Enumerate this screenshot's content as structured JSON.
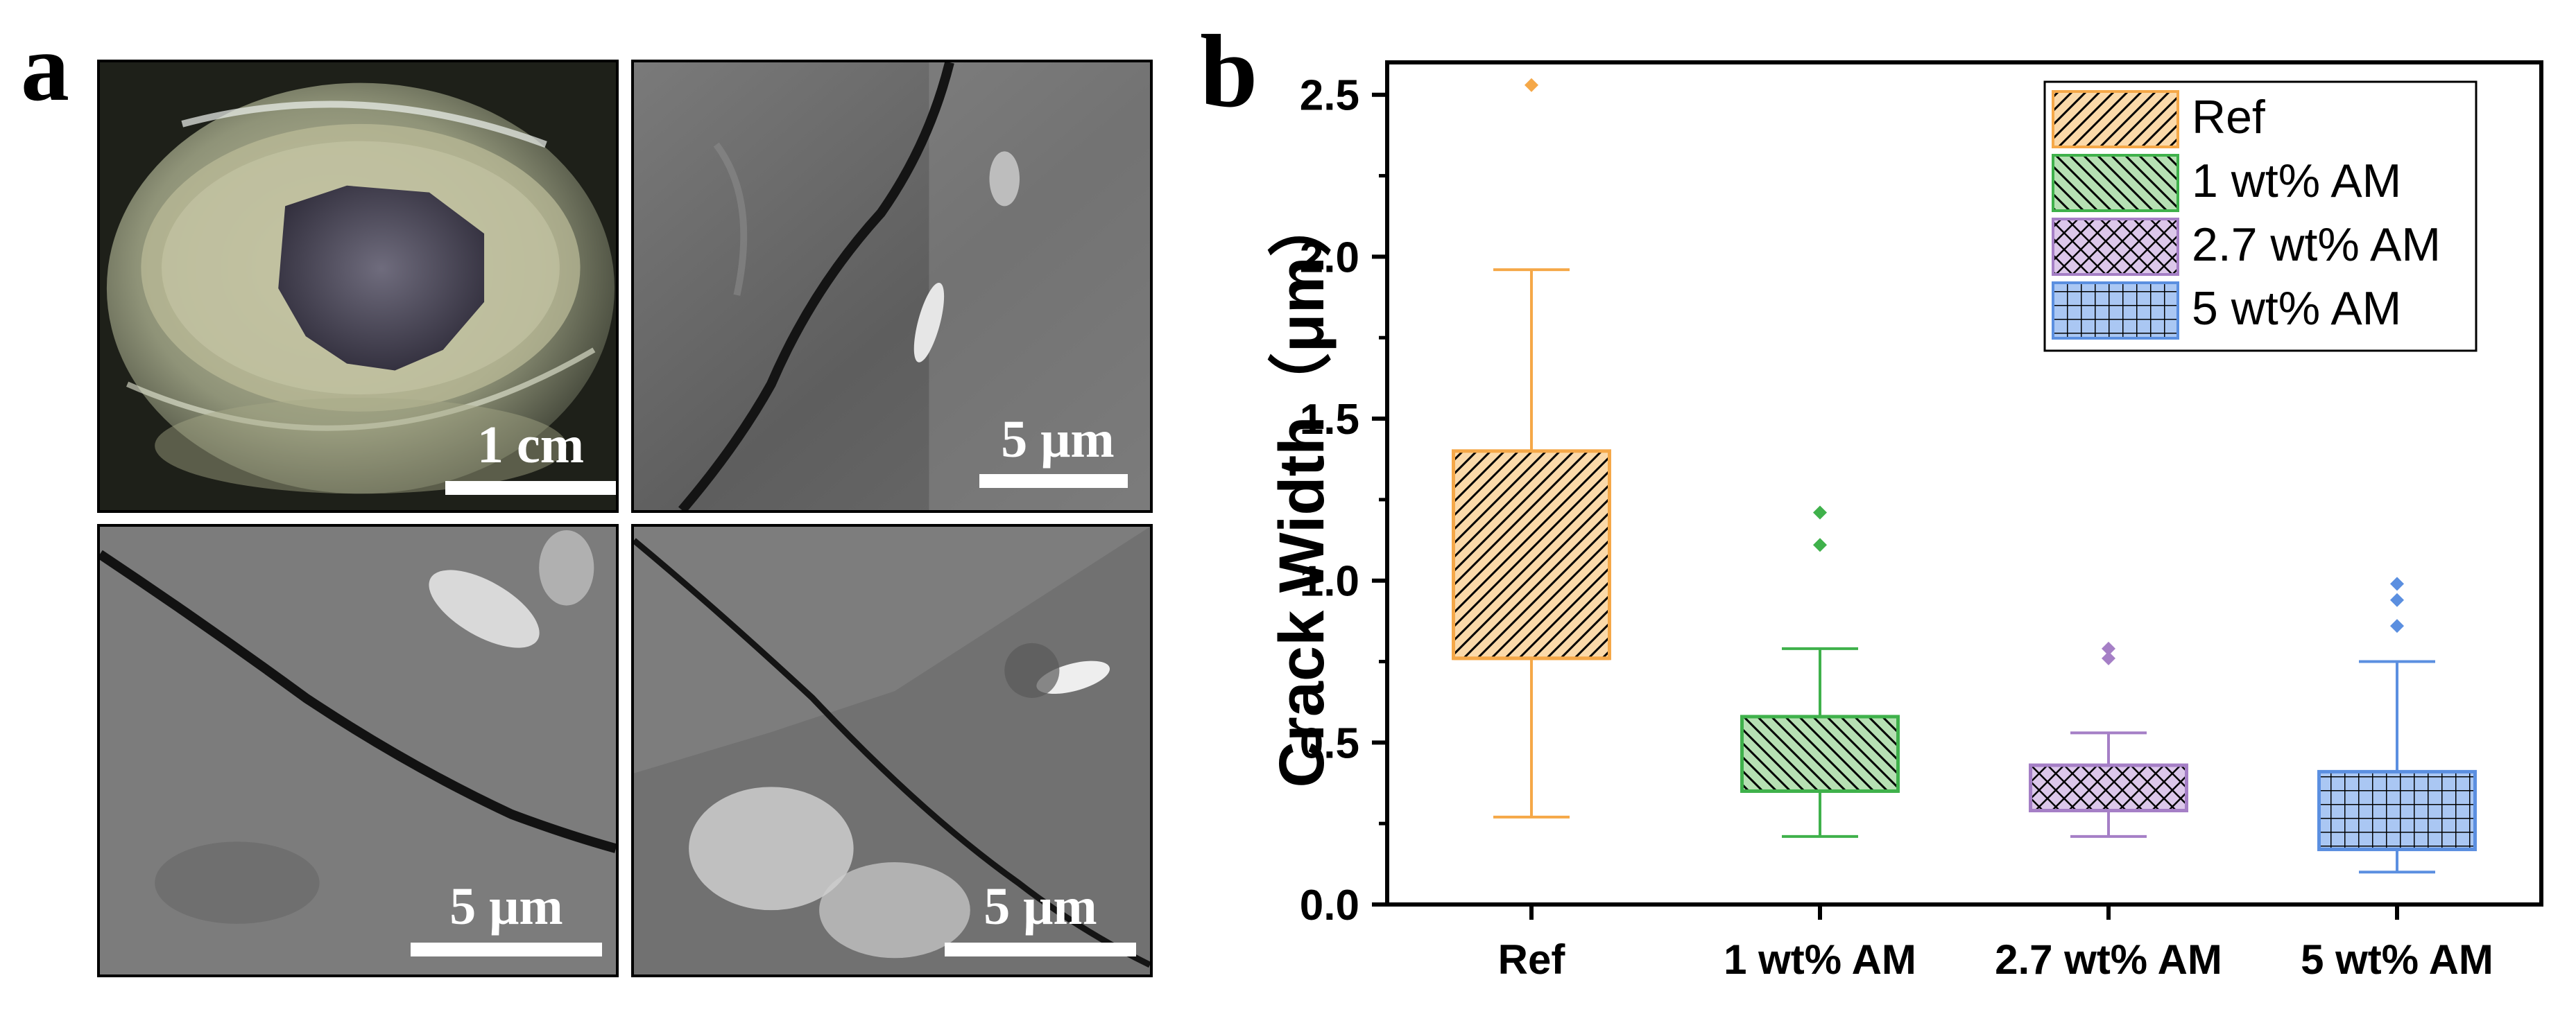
{
  "panel_a": {
    "letter": "a",
    "images": [
      {
        "name": "photo-resin-mount",
        "scale_label": "1 cm"
      },
      {
        "name": "sem-crack-ref",
        "scale_label": "5 μm"
      },
      {
        "name": "sem-crack-am-low",
        "scale_label": "5 μm"
      },
      {
        "name": "sem-crack-am-high",
        "scale_label": "5 μm"
      }
    ]
  },
  "panel_b": {
    "letter": "b"
  },
  "chart_data": {
    "type": "box",
    "title": "",
    "xlabel": "",
    "ylabel": "Crack Width（μm）",
    "ylim": [
      0,
      2.6
    ],
    "yticks": [
      "0.0",
      "0.5",
      "1.0",
      "1.5",
      "2.0",
      "2.5"
    ],
    "grid": false,
    "legend_position": "top-right",
    "categories": [
      "Ref",
      "1 wt% AM",
      "2.7 wt% AM",
      "5 wt% AM"
    ],
    "series": [
      {
        "name": "Ref",
        "whisker_low": 0.27,
        "q1": 0.76,
        "median": 0.76,
        "q3": 1.4,
        "whisker_high": 1.96,
        "outliers": [
          2.53
        ],
        "color": "#f5a848",
        "fill": "#fbd9a9",
        "pattern": "diagonal"
      },
      {
        "name": "1 wt% AM",
        "whisker_low": 0.21,
        "q1": 0.35,
        "median": 0.35,
        "q3": 0.58,
        "whisker_high": 0.79,
        "outliers": [
          1.11,
          1.21
        ],
        "color": "#3fb14b",
        "fill": "#b6e0b3",
        "pattern": "back-diagonal"
      },
      {
        "name": "2.7 wt% AM",
        "whisker_low": 0.21,
        "q1": 0.29,
        "median": 0.29,
        "q3": 0.43,
        "whisker_high": 0.53,
        "outliers": [
          0.76,
          0.79
        ],
        "color": "#a57fc6",
        "fill": "#dcc7ea",
        "pattern": "crosshatch-diagonal"
      },
      {
        "name": "5 wt% AM",
        "whisker_low": 0.1,
        "q1": 0.17,
        "median": 0.17,
        "q3": 0.41,
        "whisker_high": 0.75,
        "outliers": [
          0.86,
          0.94,
          0.99
        ],
        "color": "#5b8fe0",
        "fill": "#aac7f3",
        "pattern": "grid"
      }
    ]
  }
}
